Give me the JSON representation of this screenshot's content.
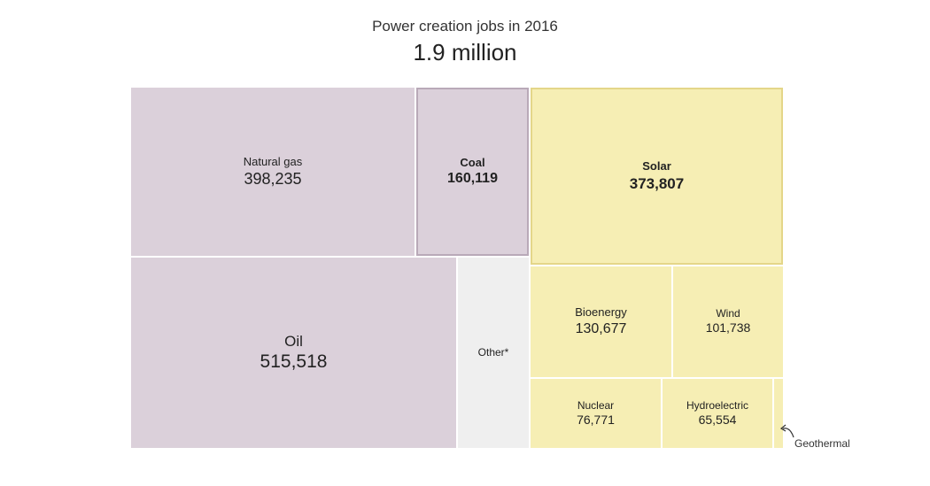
{
  "chart_data": {
    "type": "treemap",
    "title": "Power creation jobs in 2016",
    "subtitle": "1.9 million",
    "groups": [
      {
        "name": "fossil",
        "color": "#dbd0da",
        "items": [
          {
            "label": "Natural gas",
            "value": "398,235"
          },
          {
            "label": "Coal",
            "value": "160,119",
            "emphasis": true
          },
          {
            "label": "Oil",
            "value": "515,518"
          }
        ]
      },
      {
        "name": "other",
        "color": "#efefef",
        "items": [
          {
            "label": "Other*",
            "value": ""
          }
        ]
      },
      {
        "name": "renewable",
        "color": "#f6eeb4",
        "items": [
          {
            "label": "Solar",
            "value": "373,807",
            "emphasis": true
          },
          {
            "label": "Bioenergy",
            "value": "130,677"
          },
          {
            "label": "Wind",
            "value": "101,738"
          },
          {
            "label": "Nuclear",
            "value": "76,771"
          },
          {
            "label": "Hydroelectric",
            "value": "65,554"
          },
          {
            "label": "Geothermal",
            "value": ""
          }
        ]
      }
    ],
    "annotations": [
      {
        "label": "Geothermal",
        "target": "Geothermal"
      }
    ]
  }
}
